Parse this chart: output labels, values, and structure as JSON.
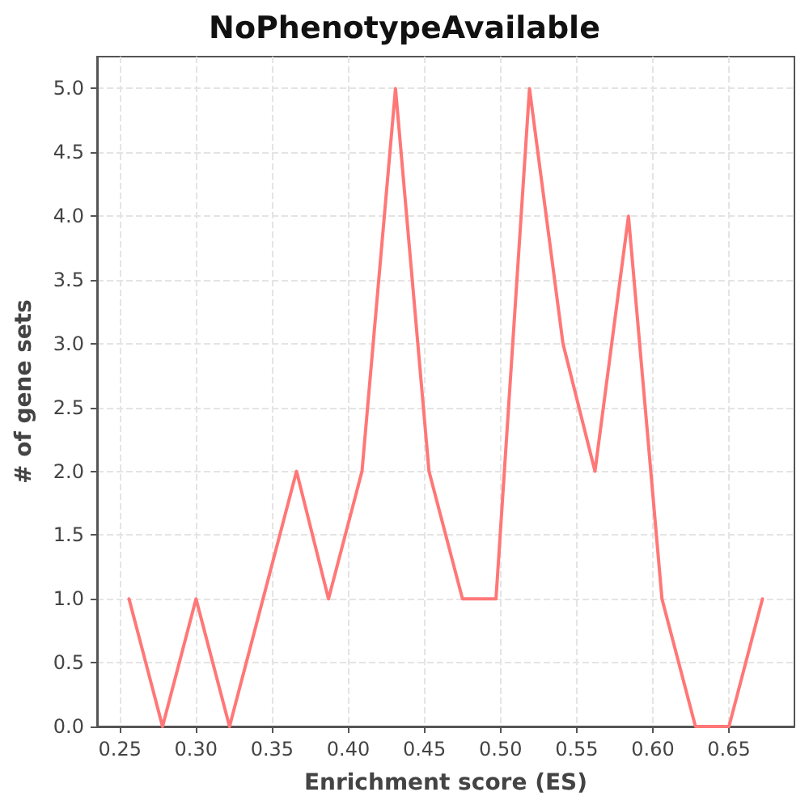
{
  "chart_data": {
    "type": "line",
    "title": "NoPhenotypeAvailable",
    "xlabel": "Enrichment score (ES)",
    "ylabel": "# of gene sets",
    "x": [
      0.256,
      0.278,
      0.3,
      0.322,
      0.344,
      0.366,
      0.387,
      0.409,
      0.431,
      0.453,
      0.475,
      0.497,
      0.519,
      0.541,
      0.562,
      0.584,
      0.606,
      0.628,
      0.65,
      0.672
    ],
    "series": [
      {
        "color": "#ff7777",
        "values": [
          1,
          0,
          1,
          0,
          1,
          2,
          1,
          2,
          5,
          2,
          1,
          1,
          5,
          3,
          2,
          4,
          1,
          0,
          0,
          1
        ]
      }
    ],
    "xlim": [
      0.235,
      0.693
    ],
    "ylim": [
      0,
      5.25
    ],
    "xticks": [
      0.25,
      {
        "value": 0.3,
        "label": "0.30"
      },
      0.35,
      {
        "value": 0.4,
        "label": "0.40"
      },
      0.45,
      {
        "value": 0.5,
        "label": "0.50"
      },
      0.55,
      {
        "value": 0.6,
        "label": "0.60"
      },
      0.65
    ],
    "yticks": [
      {
        "value": 0,
        "label": "0.0"
      },
      0.5,
      {
        "value": 1,
        "label": "1.0"
      },
      1.5,
      {
        "value": 2,
        "label": "2.0"
      },
      2.5,
      {
        "value": 3,
        "label": "3.0"
      },
      3.5,
      {
        "value": 4,
        "label": "4.0"
      },
      4.5,
      {
        "value": 5,
        "label": "5.0"
      }
    ],
    "grid": true,
    "marker": "none",
    "line_style": "solid"
  }
}
